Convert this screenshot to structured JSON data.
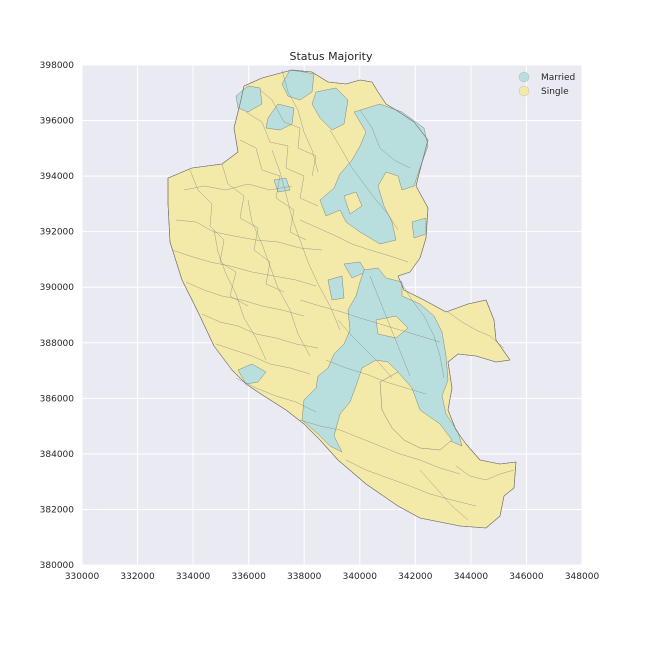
{
  "chart_data": {
    "type": "choropleth-map",
    "title": "Status Majority",
    "xlim": [
      330000,
      348000
    ],
    "ylim": [
      380000,
      398000
    ],
    "x_ticks": [
      "330000",
      "332000",
      "334000",
      "336000",
      "338000",
      "340000",
      "342000",
      "344000",
      "346000",
      "348000"
    ],
    "y_ticks": [
      "398000",
      "396000",
      "394000",
      "392000",
      "390000",
      "388000",
      "386000",
      "384000",
      "382000",
      "380000"
    ],
    "grid": true,
    "legend": {
      "placement": "top-right",
      "items": [
        {
          "label": "Married",
          "color": "#b8dfdd"
        },
        {
          "label": "Single",
          "color": "#f3e9a9"
        }
      ]
    },
    "colors": {
      "background": "#eaeaf2",
      "grid": "#ffffff",
      "married": "#b8dfdd",
      "single": "#f3e9a9",
      "boundary": "#6b6b6b"
    }
  }
}
